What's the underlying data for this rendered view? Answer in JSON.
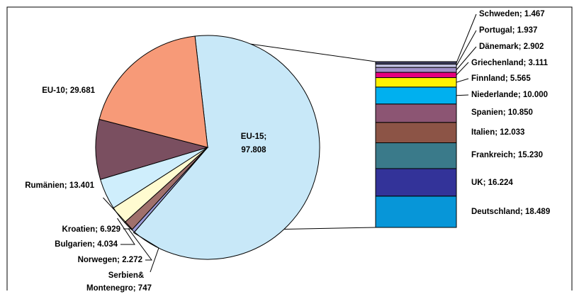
{
  "chart_data": {
    "type": "pie",
    "title": "",
    "pie": {
      "slices": [
        {
          "label": "EU-15; 97.808",
          "line1": "EU-15;",
          "line2": "97.808",
          "value": 97.808,
          "color": "#c8e8f8"
        },
        {
          "label": "Serbien& Montenegro; 747",
          "line1": "Serbien&",
          "line2": "Montenegro; 747",
          "value": 0.747,
          "color": "#9b9bd6"
        },
        {
          "label": "Norwegen; 2.272",
          "value": 2.272,
          "color": "#a0706c"
        },
        {
          "label": "Bulgarien; 4.034",
          "value": 4.034,
          "color": "#fffbd0"
        },
        {
          "label": "Kroatien; 6.929",
          "value": 6.929,
          "color": "#cfeefc"
        },
        {
          "label": "Rumänien; 13.401",
          "value": 13.401,
          "color": "#7a4f60"
        },
        {
          "label": "EU-10; 29.681",
          "value": 29.681,
          "color": "#f79a78"
        }
      ]
    },
    "breakdown": {
      "of": "EU-15",
      "segments": [
        {
          "label": "Deutschland; 18.489",
          "value": 18.489,
          "color": "#0796d8"
        },
        {
          "label": "UK; 16.224",
          "value": 16.224,
          "color": "#333399"
        },
        {
          "label": "Frankreich; 15.230",
          "value": 15.23,
          "color": "#3a7a8a"
        },
        {
          "label": "Italien; 12.033",
          "value": 12.033,
          "color": "#8c5446"
        },
        {
          "label": "Spanien; 10.850",
          "value": 10.85,
          "color": "#8c5573"
        },
        {
          "label": "Niederlande; 10.000",
          "value": 10.0,
          "color": "#00b0ef"
        },
        {
          "label": "Finnland; 5.565",
          "value": 5.565,
          "color": "#fff200"
        },
        {
          "label": "Griechenland; 3.111",
          "value": 3.111,
          "color": "#e6007e"
        },
        {
          "label": "Dänemark; 2.902",
          "value": 2.902,
          "color": "#a090c8"
        },
        {
          "label": "Portugal; 1.937",
          "value": 1.937,
          "color": "#c0c0e0"
        },
        {
          "label": "Schweden; 1.467",
          "value": 1.467,
          "color": "#404060"
        }
      ]
    },
    "legend": "none",
    "grid": false
  }
}
